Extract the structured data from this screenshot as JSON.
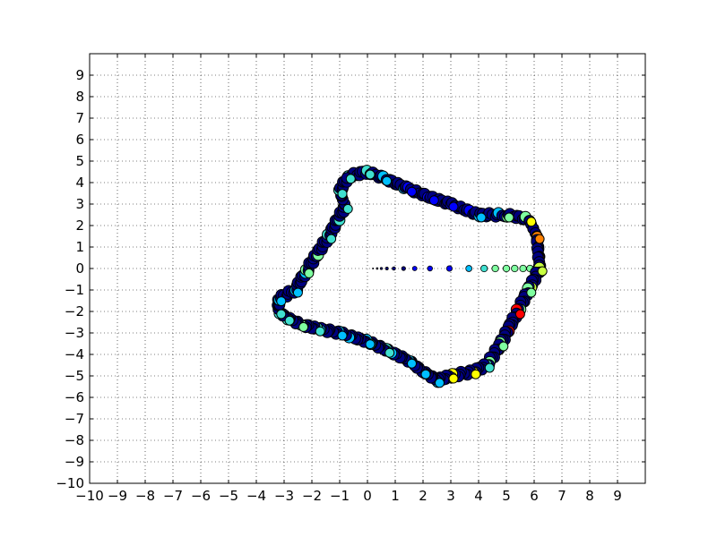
{
  "chart_data": {
    "type": "scatter",
    "title": "",
    "xlabel": "",
    "ylabel": "",
    "xlim": [
      -10,
      10
    ],
    "ylim": [
      -10,
      10
    ],
    "grid": true,
    "x_ticks": [
      -10,
      -9,
      -8,
      -7,
      -6,
      -5,
      -4,
      -3,
      -2,
      -1,
      0,
      1,
      2,
      3,
      4,
      5,
      6,
      7,
      8,
      9
    ],
    "y_ticks": [
      -10,
      -9,
      -8,
      -7,
      -6,
      -5,
      -4,
      -3,
      -2,
      -1,
      0,
      1,
      2,
      3,
      4,
      5,
      6,
      7,
      8,
      9
    ],
    "x_tick_labels": [
      "−10",
      "−9",
      "−8",
      "−7",
      "−6",
      "−5",
      "−4",
      "−3",
      "−2",
      "−1",
      "0",
      "1",
      "2",
      "3",
      "4",
      "5",
      "6",
      "7",
      "8",
      "9"
    ],
    "y_tick_labels": [
      "−10",
      "−9",
      "−8",
      "−7",
      "−6",
      "−5",
      "−4",
      "−3",
      "−2",
      "−1",
      "0",
      "1",
      "2",
      "3",
      "4",
      "5",
      "6",
      "7",
      "8",
      "9"
    ],
    "colormap": [
      "#000080",
      "#0000ff",
      "#00bfff",
      "#40e0d0",
      "#7fffa0",
      "#c8ff40",
      "#ffff00",
      "#ff8000",
      "#ff0000"
    ],
    "marker_edge_color": "#000000",
    "radial_line": {
      "y": 0,
      "x": [
        0.2,
        0.35,
        0.5,
        0.7,
        0.95,
        1.3,
        1.7,
        2.25,
        2.95,
        3.65,
        4.2,
        4.6,
        5.0,
        5.3,
        5.6,
        5.85,
        6.05
      ],
      "color_index": [
        0,
        0,
        0,
        0,
        0,
        0,
        1,
        1,
        1,
        2,
        3,
        4,
        4,
        4,
        4,
        4,
        3
      ],
      "size": [
        1,
        1.5,
        2,
        2.5,
        3,
        3.5,
        4,
        4.5,
        5,
        5.5,
        6,
        6,
        6,
        6,
        6,
        6,
        6
      ]
    },
    "loop": {
      "vertices": [
        [
          -0.7,
          4.3
        ],
        [
          0.0,
          4.5
        ],
        [
          0.6,
          4.2
        ],
        [
          1.5,
          3.7
        ],
        [
          2.3,
          3.3
        ],
        [
          3.0,
          3.0
        ],
        [
          4.0,
          2.5
        ],
        [
          5.0,
          2.5
        ],
        [
          5.8,
          2.3
        ],
        [
          6.1,
          1.5
        ],
        [
          6.2,
          0.0
        ],
        [
          5.8,
          -1.0
        ],
        [
          5.4,
          -2.0
        ],
        [
          4.8,
          -3.5
        ],
        [
          4.3,
          -4.5
        ],
        [
          3.8,
          -4.8
        ],
        [
          3.0,
          -5.0
        ],
        [
          2.5,
          -5.2
        ],
        [
          2.0,
          -4.8
        ],
        [
          1.5,
          -4.3
        ],
        [
          0.7,
          -3.8
        ],
        [
          0.0,
          -3.4
        ],
        [
          -1.0,
          -3.0
        ],
        [
          -1.8,
          -2.8
        ],
        [
          -2.4,
          -2.6
        ],
        [
          -2.9,
          -2.3
        ],
        [
          -3.2,
          -2.0
        ],
        [
          -3.2,
          -1.4
        ],
        [
          -2.6,
          -1.0
        ],
        [
          -2.2,
          -0.1
        ],
        [
          -1.4,
          1.5
        ],
        [
          -0.8,
          2.9
        ],
        [
          -1.0,
          3.6
        ]
      ],
      "color_index_per_vertex": [
        3,
        3,
        2,
        1,
        1,
        1,
        2,
        4,
        6,
        7,
        5,
        4,
        8,
        4,
        3,
        6,
        6,
        2,
        2,
        2,
        3,
        2,
        2,
        3,
        4,
        3,
        3,
        2,
        2,
        4,
        3,
        3,
        3
      ],
      "marker_size": 6
    }
  }
}
